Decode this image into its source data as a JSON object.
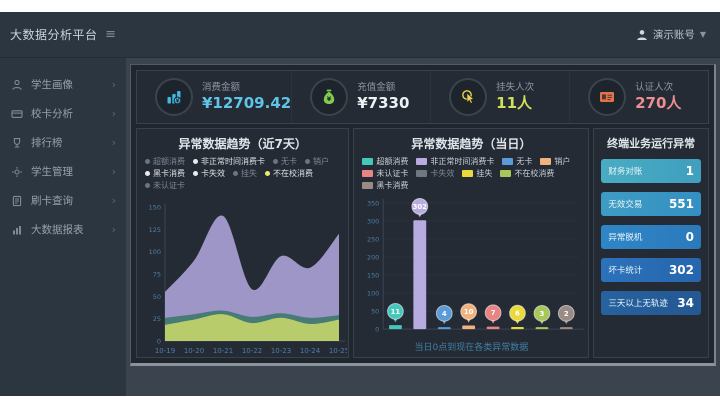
{
  "brand": {
    "title": "大数据分析平台"
  },
  "header": {
    "user_label": "演示账号"
  },
  "sidebar": {
    "items": [
      {
        "label": "学生画像",
        "icon": "person-icon"
      },
      {
        "label": "校卡分析",
        "icon": "card-icon"
      },
      {
        "label": "排行榜",
        "icon": "trophy-icon"
      },
      {
        "label": "学生管理",
        "icon": "gear-icon"
      },
      {
        "label": "刷卡查询",
        "icon": "document-icon"
      },
      {
        "label": "大数据报表",
        "icon": "report-icon"
      }
    ]
  },
  "kpis": [
    {
      "label": "消费金额",
      "value": "¥12709.42",
      "value_color": "#5fc4e8",
      "icon": "coins-icon"
    },
    {
      "label": "充值金额",
      "value": "¥7330",
      "value_color": "#edf2f4",
      "icon": "money-bag-icon"
    },
    {
      "label": "挂失人次",
      "value": "11人",
      "value_color": "#cfe05b",
      "icon": "hand-click-icon"
    },
    {
      "label": "认证人次",
      "value": "270人",
      "value_color": "#ec8f8f",
      "icon": "id-card-icon"
    }
  ],
  "left_chart": {
    "title": "异常数据趋势（近7天）",
    "legend": [
      {
        "label": "超额消费",
        "dot": "#6b7480",
        "text": "#7d8793"
      },
      {
        "label": "非正常时间消费卡",
        "dot": "#e8ecef",
        "text": "#dde2e7"
      },
      {
        "label": "无卡",
        "dot": "#6b7480",
        "text": "#7d8793"
      },
      {
        "label": "销户",
        "dot": "#6b7480",
        "text": "#7d8793"
      },
      {
        "label": "黑卡消费",
        "dot": "#e8ecef",
        "text": "#dde2e7"
      },
      {
        "label": "卡失效",
        "dot": "#e8ecef",
        "text": "#dde2e7"
      },
      {
        "label": "挂失",
        "dot": "#6b7480",
        "text": "#7d8793"
      },
      {
        "label": "不在校消费",
        "dot": "#e4ef6a",
        "text": "#dde2e7"
      },
      {
        "label": "未认证卡",
        "dot": "#6b7480",
        "text": "#7d8793"
      }
    ]
  },
  "mid_chart": {
    "title": "异常数据趋势（当日）",
    "caption": "当日0点到现在各类异常数据",
    "legend": [
      {
        "label": "超额消费",
        "swatch": "#45c8bc"
      },
      {
        "label": "非正常时间消费卡",
        "swatch": "#b7abdf"
      },
      {
        "label": "无卡",
        "swatch": "#5a9bd8"
      },
      {
        "label": "销户",
        "swatch": "#f2b27e"
      },
      {
        "label": "未认证卡",
        "swatch": "#e88484"
      },
      {
        "label": "卡失效",
        "swatch": "#6f7780",
        "text": "#7d8793"
      },
      {
        "label": "挂失",
        "swatch": "#ead93c"
      },
      {
        "label": "不在校消费",
        "swatch": "#a7c75c"
      },
      {
        "label": "黑卡消费",
        "swatch": "#9b8b85"
      }
    ]
  },
  "chart_data": [
    {
      "type": "area",
      "title": "异常数据趋势（近7天）",
      "x": [
        "10-19",
        "10-20",
        "10-21",
        "10-22",
        "10-23",
        "10-24",
        "10-25"
      ],
      "series": [
        {
          "name": "非正常时间消费卡",
          "color": "#a79fd2",
          "values": [
            55,
            90,
            140,
            58,
            95,
            82,
            120
          ]
        },
        {
          "name": "黑卡消费",
          "color": "#3f7a6e",
          "values": [
            26,
            30,
            34,
            27,
            31,
            26,
            29
          ]
        },
        {
          "name": "不在校消费",
          "color": "#c3d36a",
          "values": [
            18,
            24,
            30,
            20,
            26,
            19,
            24
          ]
        }
      ],
      "ylim": [
        0,
        150
      ],
      "yticks": [
        0,
        25,
        50,
        75,
        100,
        125,
        150
      ],
      "grid": false,
      "legend_position": "top"
    },
    {
      "type": "bar",
      "title": "异常数据趋势（当日）",
      "categories": [
        "超额消费",
        "非正常时间消费卡",
        "无卡",
        "销户",
        "未认证卡",
        "挂失",
        "不在校消费",
        "黑卡消费"
      ],
      "values": [
        11,
        302,
        4,
        10,
        7,
        6,
        3,
        2
      ],
      "colors": [
        "#45c8bc",
        "#b7abdf",
        "#5a9bd8",
        "#f2b27e",
        "#e88484",
        "#ead93c",
        "#a7c75c",
        "#9b8b85"
      ],
      "ylim": [
        0,
        350
      ],
      "yticks": [
        0,
        50,
        100,
        150,
        200,
        250,
        300,
        350
      ],
      "xlabel": "当日0点到现在各类异常数据",
      "grid": true,
      "legend_position": "top"
    }
  ],
  "right_panel": {
    "title": "终端业务运行异常",
    "items": [
      {
        "label": "财务对账",
        "value": "1",
        "bg1": "#49acc3",
        "bg2": "#3f9fbe"
      },
      {
        "label": "无效交易",
        "value": "551",
        "bg1": "#3e9cc4",
        "bg2": "#3490c2"
      },
      {
        "label": "异常脱机",
        "value": "0",
        "bg1": "#2f86c6",
        "bg2": "#2b79bb"
      },
      {
        "label": "坏卡统计",
        "value": "302",
        "bg1": "#2b72ba",
        "bg2": "#2766ae"
      },
      {
        "label": "三天以上无轨迹",
        "value": "34",
        "bg1": "#27629f",
        "bg2": "#235893"
      }
    ]
  }
}
